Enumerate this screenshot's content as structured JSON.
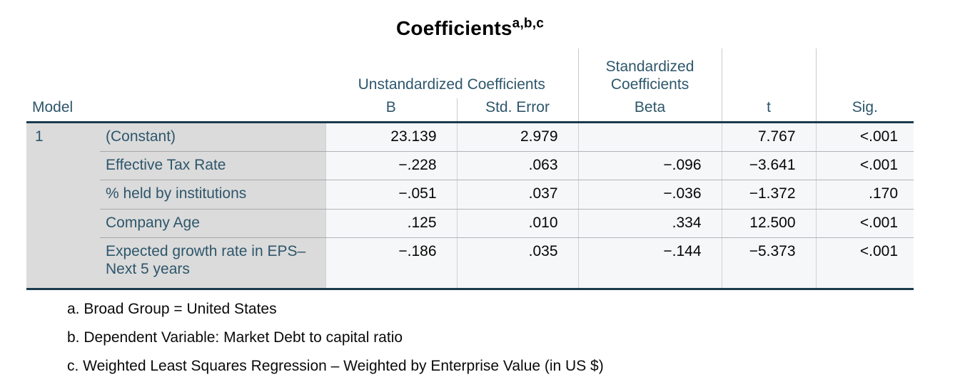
{
  "title": {
    "text": "Coefficients",
    "superscript": "a,b,c"
  },
  "table": {
    "stub_header": "Model",
    "model_number": "1",
    "spanner_unstandardized": "Unstandardized Coefficients",
    "spanner_standardized": "Standardized Coefficients",
    "col_b": "B",
    "col_std_error": "Std. Error",
    "col_beta": "Beta",
    "col_t": "t",
    "col_sig": "Sig.",
    "rows": [
      {
        "predictor": "(Constant)",
        "b": "23.139",
        "std_error": "2.979",
        "beta": "",
        "t": "7.767",
        "sig": "<.001"
      },
      {
        "predictor": "Effective Tax Rate",
        "b": "−.228",
        "std_error": ".063",
        "beta": "−.096",
        "t": "−3.641",
        "sig": "<.001"
      },
      {
        "predictor": "% held by institutions",
        "b": "−.051",
        "std_error": ".037",
        "beta": "−.036",
        "t": "−1.372",
        "sig": ".170"
      },
      {
        "predictor": "Company Age",
        "b": ".125",
        "std_error": ".010",
        "beta": ".334",
        "t": "12.500",
        "sig": "<.001"
      },
      {
        "predictor": "Expected growth rate in EPS– Next 5 years",
        "b": "−.186",
        "std_error": ".035",
        "beta": "−.144",
        "t": "−5.373",
        "sig": "<.001"
      }
    ]
  },
  "footnotes": [
    "a. Broad Group = United States",
    "b. Dependent Variable: Market Debt to capital ratio",
    "c. Weighted Least Squares Regression – Weighted by Enterprise Value (in US $)"
  ],
  "colors": {
    "header_text": "#2e566b",
    "stub_background": "#dbdbdb",
    "cell_background": "#f6f7f8",
    "heavy_border": "#1a3b4d"
  }
}
